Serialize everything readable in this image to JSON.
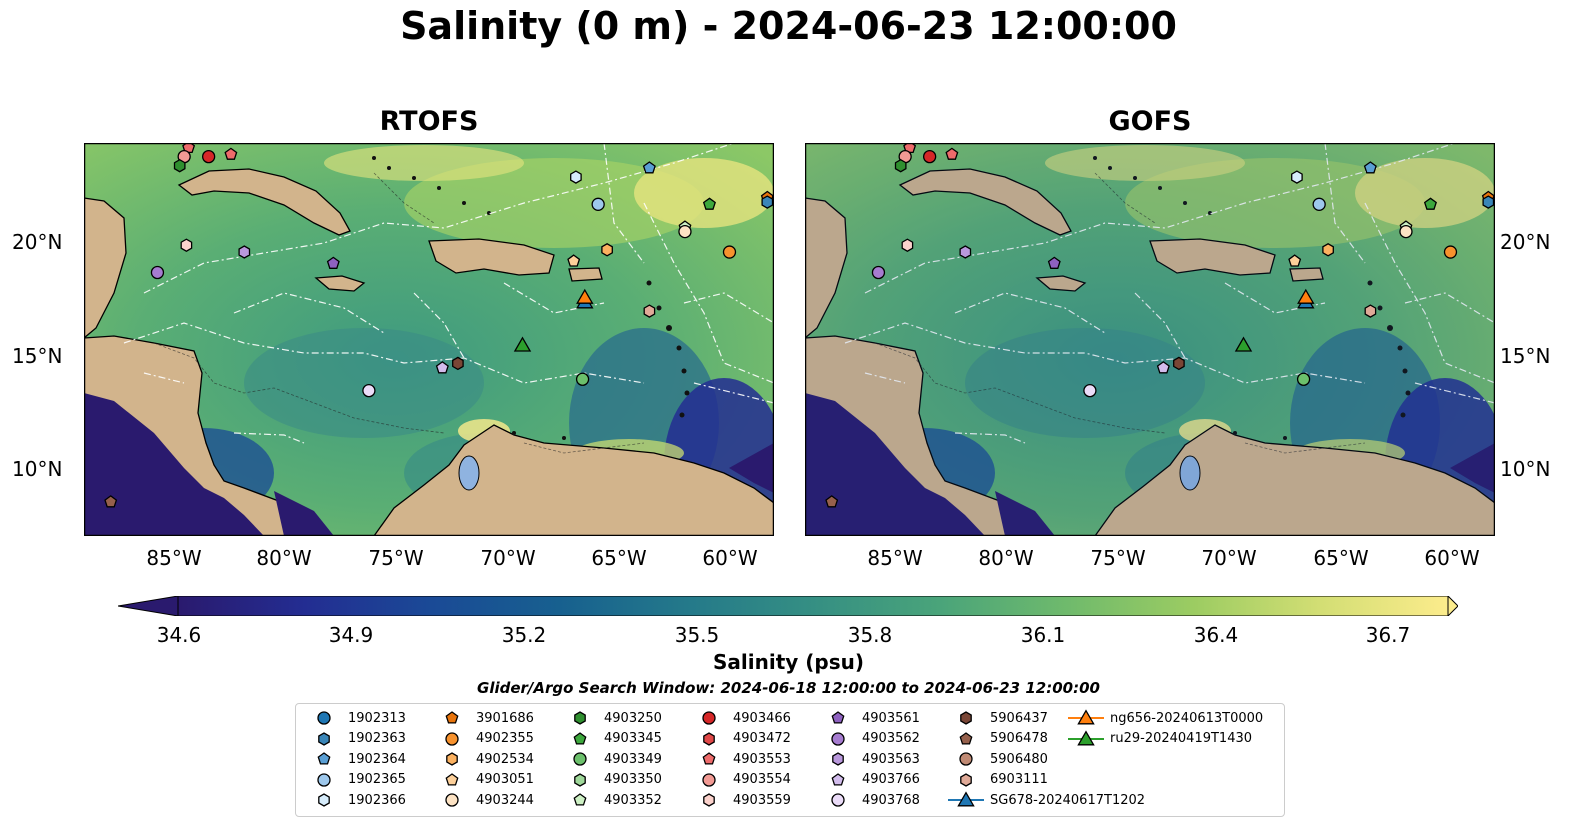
{
  "title": "Salinity (0 m) - 2024-06-23 12:00:00",
  "panels": [
    {
      "id": "rtofs",
      "title": "RTOFS"
    },
    {
      "id": "gofs",
      "title": "GOFS"
    }
  ],
  "map": {
    "lon_range": [
      -89,
      -58
    ],
    "lat_range": [
      7,
      24.3
    ],
    "lon_ticks": [
      "85°W",
      "80°W",
      "75°W",
      "70°W",
      "65°W",
      "60°W"
    ],
    "lat_ticks": [
      "20°N",
      "15°N",
      "10°N"
    ],
    "land_color": "#d2b48c",
    "eez_line_color": "#ffffff",
    "bathymetry_contour": "1000"
  },
  "colorbar": {
    "label": "Salinity (psu)",
    "ticks": [
      "34.6",
      "34.9",
      "35.2",
      "35.5",
      "35.8",
      "36.1",
      "36.4",
      "36.7"
    ],
    "range": [
      34.6,
      36.7
    ],
    "colormap": "haline",
    "colors": [
      "#2a1a6e",
      "#232d92",
      "#1a4a96",
      "#17608f",
      "#24798a",
      "#358f83",
      "#4aa47a",
      "#6fba6c",
      "#9ccc62",
      "#d3de74",
      "#fcec8c"
    ]
  },
  "search_window": "Glider/Argo Search Window: 2024-06-18 12:00:00 to 2024-06-23 12:00:00",
  "legend": [
    {
      "label": "1902313",
      "marker": "circle",
      "color": "#1f77b4"
    },
    {
      "label": "1902363",
      "marker": "hexagon",
      "color": "#3a86b8"
    },
    {
      "label": "1902364",
      "marker": "pentagon",
      "color": "#5a9fd4"
    },
    {
      "label": "1902365",
      "marker": "circle",
      "color": "#9ec8ec"
    },
    {
      "label": "1902366",
      "marker": "hexagon",
      "color": "#d6ecfb"
    },
    {
      "label": "3901686",
      "marker": "pentagon",
      "color": "#e8740c"
    },
    {
      "label": "4902355",
      "marker": "circle",
      "color": "#f7922e"
    },
    {
      "label": "4902534",
      "marker": "hexagon",
      "color": "#fbb160"
    },
    {
      "label": "4903051",
      "marker": "pentagon",
      "color": "#fdd09a"
    },
    {
      "label": "4903244",
      "marker": "circle",
      "color": "#fde3c4"
    },
    {
      "label": "4903250",
      "marker": "hexagon",
      "color": "#2f8f2f"
    },
    {
      "label": "4903345",
      "marker": "pentagon",
      "color": "#3da83d"
    },
    {
      "label": "4903349",
      "marker": "circle",
      "color": "#6cc06c"
    },
    {
      "label": "4903350",
      "marker": "hexagon",
      "color": "#9fd89a"
    },
    {
      "label": "4903352",
      "marker": "pentagon",
      "color": "#cdf0c4"
    },
    {
      "label": "4903466",
      "marker": "circle",
      "color": "#d62728"
    },
    {
      "label": "4903472",
      "marker": "hexagon",
      "color": "#e04848"
    },
    {
      "label": "4903553",
      "marker": "pentagon",
      "color": "#ee6b6b"
    },
    {
      "label": "4903554",
      "marker": "circle",
      "color": "#f29a94"
    },
    {
      "label": "4903559",
      "marker": "hexagon",
      "color": "#fbd2cc"
    },
    {
      "label": "4903561",
      "marker": "pentagon",
      "color": "#8e61c0"
    },
    {
      "label": "4903562",
      "marker": "circle",
      "color": "#a67cd0"
    },
    {
      "label": "4903563",
      "marker": "hexagon",
      "color": "#b998dc"
    },
    {
      "label": "4903766",
      "marker": "pentagon",
      "color": "#d2bcec"
    },
    {
      "label": "4903768",
      "marker": "circle",
      "color": "#ebdcf8"
    },
    {
      "label": "5906437",
      "marker": "hexagon",
      "color": "#7a4636"
    },
    {
      "label": "5906478",
      "marker": "pentagon",
      "color": "#96604c"
    },
    {
      "label": "5906480",
      "marker": "circle",
      "color": "#c08a74"
    },
    {
      "label": "6903111",
      "marker": "hexagon",
      "color": "#e0aa98"
    },
    {
      "label": "SG678-20240617T1202",
      "marker": "triangle-line",
      "color": "#1f77b4"
    },
    {
      "label": "ng656-20240613T0000",
      "marker": "triangle-line",
      "color": "#ff7f0e"
    },
    {
      "label": "ru29-20240419T1430",
      "marker": "triangle-line",
      "color": "#2ca02c"
    }
  ],
  "float_positions": [
    {
      "label": "4903553",
      "lon": -84.3,
      "lat": 24.1
    },
    {
      "label": "4903554",
      "lon": -84.5,
      "lat": 23.7
    },
    {
      "label": "4903250",
      "lon": -84.7,
      "lat": 23.3
    },
    {
      "label": "4903466",
      "lon": -83.4,
      "lat": 23.7
    },
    {
      "label": "4903553",
      "lon": -82.4,
      "lat": 23.8
    },
    {
      "label": "1902366",
      "lon": -66.9,
      "lat": 22.8
    },
    {
      "label": "1902364",
      "lon": -63.6,
      "lat": 23.2
    },
    {
      "label": "1902365",
      "lon": -65.9,
      "lat": 21.6
    },
    {
      "label": "4903345",
      "lon": -60.9,
      "lat": 21.6
    },
    {
      "label": "3901686",
      "lon": -58.3,
      "lat": 21.9
    },
    {
      "label": "1902363",
      "lon": -58.3,
      "lat": 21.7
    },
    {
      "label": "4903352",
      "lon": -62.0,
      "lat": 20.6
    },
    {
      "label": "4903244",
      "lon": -62.0,
      "lat": 20.4
    },
    {
      "label": "4902355",
      "lon": -60.0,
      "lat": 19.5
    },
    {
      "label": "4902534",
      "lon": -65.5,
      "lat": 19.6
    },
    {
      "label": "4903051",
      "lon": -67.0,
      "lat": 19.1
    },
    {
      "label": "4903559",
      "lon": -84.4,
      "lat": 19.8
    },
    {
      "label": "4903563",
      "lon": -81.8,
      "lat": 19.5
    },
    {
      "label": "4903561",
      "lon": -77.8,
      "lat": 19.0
    },
    {
      "label": "4903562",
      "lon": -85.7,
      "lat": 18.6
    },
    {
      "label": "6903111",
      "lon": -63.6,
      "lat": 16.9
    },
    {
      "label": "5906437",
      "lon": -72.2,
      "lat": 14.6
    },
    {
      "label": "4903766",
      "lon": -72.9,
      "lat": 14.4
    },
    {
      "label": "4903768",
      "lon": -76.2,
      "lat": 13.4
    },
    {
      "label": "4903349",
      "lon": -66.6,
      "lat": 13.9
    },
    {
      "label": "5906478",
      "lon": -87.8,
      "lat": 8.5
    }
  ],
  "glider_positions": [
    {
      "label": "SG678-20240617T1202",
      "lon": -66.5,
      "lat": 17.3
    },
    {
      "label": "ng656-20240613T0000",
      "lon": -66.5,
      "lat": 17.5
    },
    {
      "label": "ru29-20240419T1430",
      "lon": -69.3,
      "lat": 15.4
    }
  ]
}
